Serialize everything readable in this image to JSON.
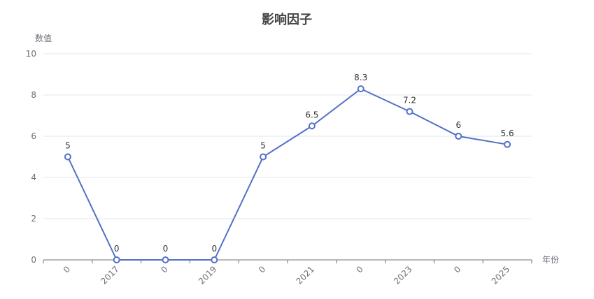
{
  "chart_data": {
    "type": "line",
    "title": "影响因子",
    "xlabel": "年份",
    "ylabel": "数值",
    "categories": [
      "0",
      "2017",
      "0",
      "2019",
      "0",
      "2021",
      "0",
      "2023",
      "0",
      "2025"
    ],
    "series": [
      {
        "values": [
          5,
          0,
          0,
          0,
          5,
          6.5,
          8.3,
          7.2,
          6,
          5.6
        ]
      }
    ],
    "ylim": [
      0,
      10
    ],
    "yticks": [
      0,
      2,
      4,
      6,
      8,
      10
    ],
    "grid": true,
    "data_labels": true,
    "colors": {
      "line": "#5470c6",
      "grid": "#e0e6f1",
      "axis": "#6e7079",
      "title": "#464646"
    }
  }
}
